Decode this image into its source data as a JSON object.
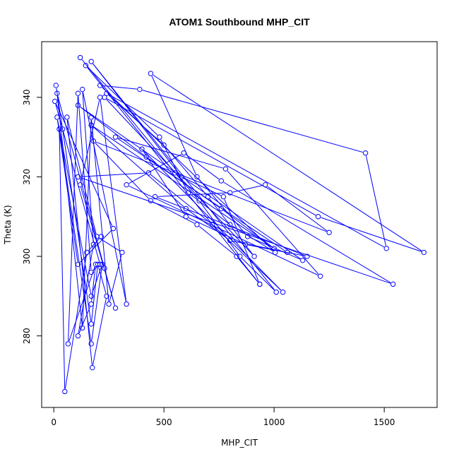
{
  "chart_data": {
    "type": "line",
    "title": "ATOM1 Southbound MHP_CIT",
    "xlabel": "MHP_CIT",
    "ylabel": "Theta (K)",
    "xlim": [
      -55,
      1740
    ],
    "ylim": [
      262,
      354
    ],
    "xticks": [
      0,
      500,
      1000,
      1500
    ],
    "yticks": [
      280,
      300,
      320,
      340
    ],
    "grid": false,
    "legend": "none",
    "color": "#0000ff",
    "marker": "open-circle",
    "series": [
      {
        "points": [
          [
            10,
            343
          ],
          [
            40,
            332
          ],
          [
            170,
            283
          ],
          [
            200,
            298
          ],
          [
            240,
            290
          ],
          [
            175,
            272
          ],
          [
            60,
            335
          ],
          [
            195,
            305
          ],
          [
            310,
            301
          ],
          [
            250,
            288
          ],
          [
            170,
            335
          ],
          [
            130,
            282
          ],
          [
            15,
            341
          ],
          [
            230,
            297
          ],
          [
            280,
            287
          ],
          [
            120,
            318
          ],
          [
            210,
            340
          ],
          [
            330,
            288
          ],
          [
            130,
            342
          ],
          [
            180,
            303
          ],
          [
            110,
            280
          ],
          [
            170,
            288
          ],
          [
            190,
            298
          ],
          [
            65,
            278
          ],
          [
            110,
            341
          ],
          [
            170,
            296
          ],
          [
            210,
            298
          ],
          [
            5,
            339
          ],
          [
            270,
            307
          ],
          [
            110,
            298
          ],
          [
            15,
            335
          ],
          [
            170,
            290
          ],
          [
            220,
            298
          ],
          [
            170,
            278
          ],
          [
            25,
            332
          ],
          [
            50,
            266
          ],
          [
            150,
            301
          ],
          [
            215,
            305
          ]
        ]
      },
      {
        "points": [
          [
            120,
            350
          ],
          [
            550,
            321
          ],
          [
            660,
            314
          ],
          [
            845,
            300
          ],
          [
            1010,
            291
          ],
          [
            170,
            349
          ],
          [
            580,
            320
          ],
          [
            770,
            315
          ],
          [
            935,
            293
          ],
          [
            145,
            348
          ],
          [
            480,
            330
          ],
          [
            610,
            316
          ],
          [
            800,
            308
          ],
          [
            1005,
            301
          ],
          [
            210,
            343
          ],
          [
            390,
            342
          ],
          [
            1415,
            326
          ],
          [
            1510,
            302
          ],
          [
            240,
            341
          ],
          [
            500,
            328
          ],
          [
            700,
            315
          ],
          [
            910,
            300
          ],
          [
            230,
            340
          ],
          [
            1200,
            310
          ],
          [
            1680,
            301
          ],
          [
            440,
            346
          ],
          [
            650,
            320
          ],
          [
            880,
            305
          ],
          [
            1130,
            299
          ],
          [
            110,
            338
          ],
          [
            420,
            325
          ],
          [
            760,
            312
          ],
          [
            1000,
            302
          ],
          [
            170,
            333
          ],
          [
            600,
            312
          ],
          [
            800,
            304
          ],
          [
            1060,
            301
          ],
          [
            280,
            330
          ],
          [
            780,
            322
          ],
          [
            1210,
            295
          ],
          [
            330,
            318
          ],
          [
            590,
            326
          ],
          [
            760,
            319
          ],
          [
            1540,
            293
          ],
          [
            110,
            320
          ],
          [
            430,
            321
          ],
          [
            720,
            308
          ],
          [
            1040,
            291
          ],
          [
            400,
            327
          ],
          [
            600,
            310
          ],
          [
            870,
            303
          ],
          [
            1150,
            300
          ],
          [
            460,
            315
          ],
          [
            800,
            316
          ],
          [
            960,
            318
          ],
          [
            1250,
            306
          ],
          [
            180,
            329
          ],
          [
            440,
            314
          ],
          [
            650,
            308
          ],
          [
            830,
            300
          ],
          [
            935,
            293
          ]
        ]
      }
    ]
  }
}
